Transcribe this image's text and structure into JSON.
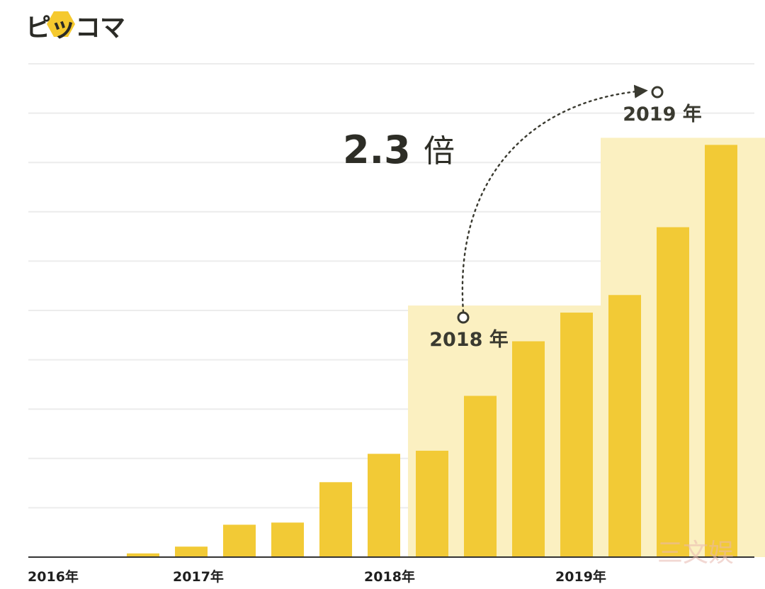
{
  "logo": {
    "text": "ピッコマ"
  },
  "annotation": {
    "multiplier": "2.3",
    "multiplier_unit": "倍",
    "from_label": "2018 年",
    "to_label": "2019 年"
  },
  "watermark": {
    "text": "三文娱"
  },
  "colors": {
    "bar": "#f2ca36",
    "highlight": "#fbf0c1",
    "grid": "#ececec",
    "axis": "#333333",
    "annotation": "#3a3a30"
  },
  "chart_data": {
    "type": "bar",
    "x_tick_labels": [
      "2016年",
      "2017年",
      "2018年",
      "2019年"
    ],
    "values": [
      0.2,
      1.2,
      3.4,
      10.5,
      11.2,
      24.3,
      33.5,
      34.5,
      52.3,
      70.0,
      79.3,
      85.0,
      107.0,
      133.7
    ],
    "ylim": [
      0,
      160
    ],
    "grid": true,
    "highlight_ranges": [
      {
        "label": "2018 年",
        "start": 7,
        "end": 10
      },
      {
        "label": "2019 年",
        "start": 11,
        "end": 14
      }
    ]
  }
}
